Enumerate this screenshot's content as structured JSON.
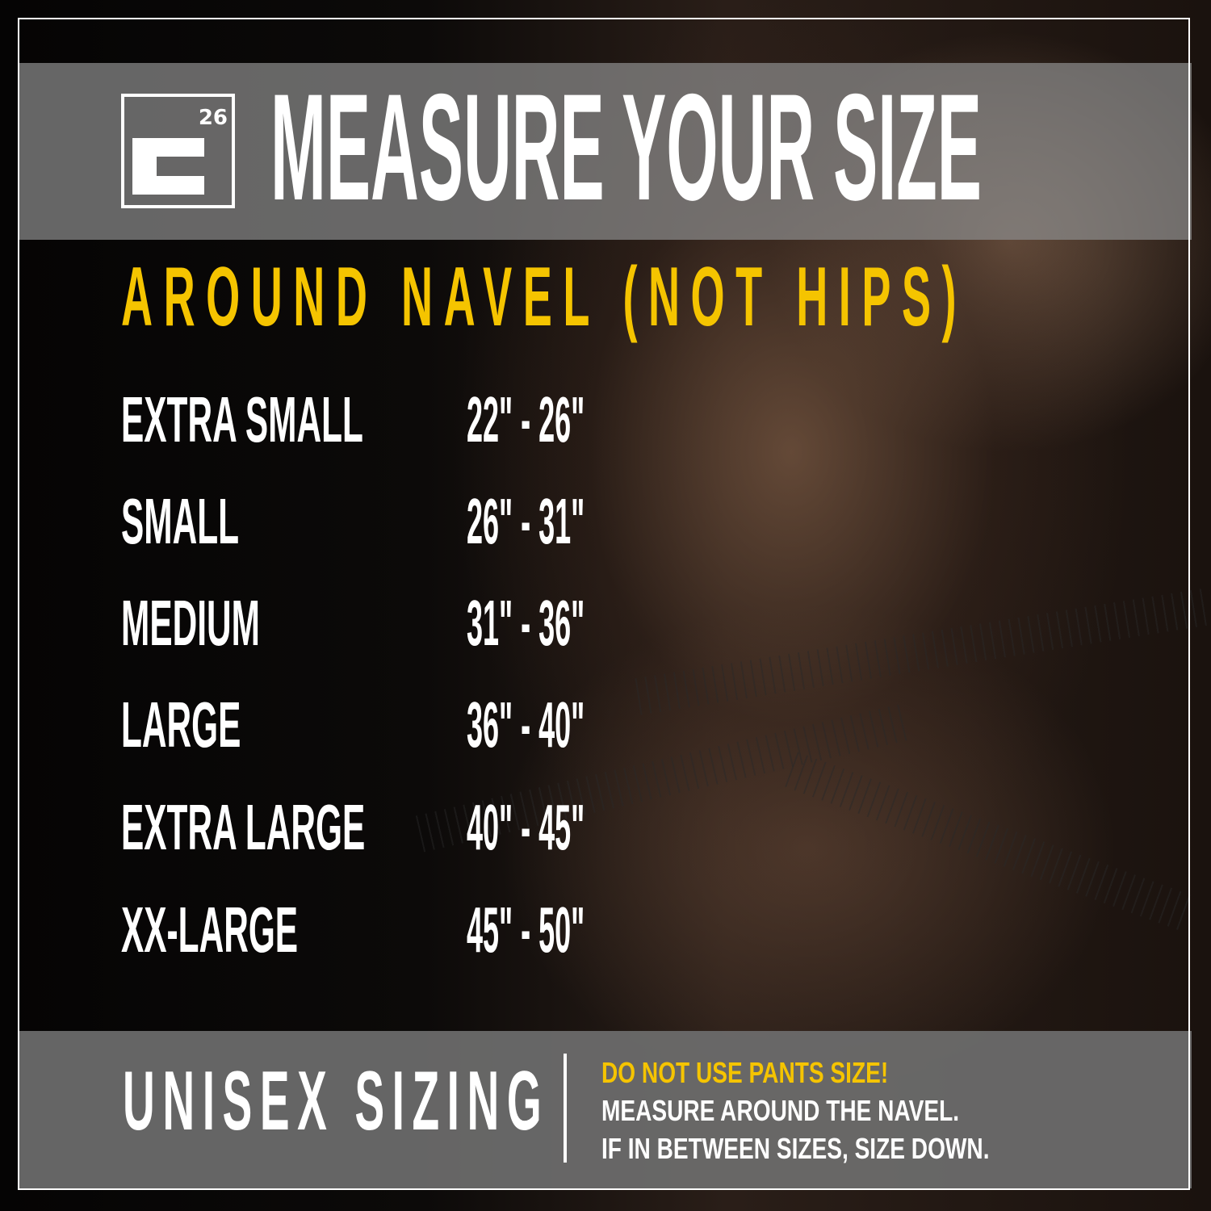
{
  "logo": {
    "text": "26",
    "letter": "E"
  },
  "header": {
    "title": "MEASURE YOUR SIZE"
  },
  "subtitle": "AROUND NAVEL (NOT HIPS)",
  "sizes": [
    {
      "label": "EXTRA SMALL",
      "range": "22\" - 26\""
    },
    {
      "label": "SMALL",
      "range": "26\" - 31\""
    },
    {
      "label": "MEDIUM",
      "range": "31\" - 36\""
    },
    {
      "label": "LARGE",
      "range": "36\" - 40\""
    },
    {
      "label": "EXTRA LARGE",
      "range": "40\" - 45\""
    },
    {
      "label": "XX-LARGE",
      "range": "45\" - 50\""
    }
  ],
  "footer": {
    "heading": "UNISEX SIZING",
    "warning": "DO NOT USE PANTS SIZE!",
    "line1": "MEASURE AROUND THE NAVEL.",
    "line2": "IF IN BETWEEN SIZES, SIZE DOWN."
  },
  "colors": {
    "accent": "#f5c400",
    "text": "#ffffff",
    "band": "#8c8c8c"
  }
}
